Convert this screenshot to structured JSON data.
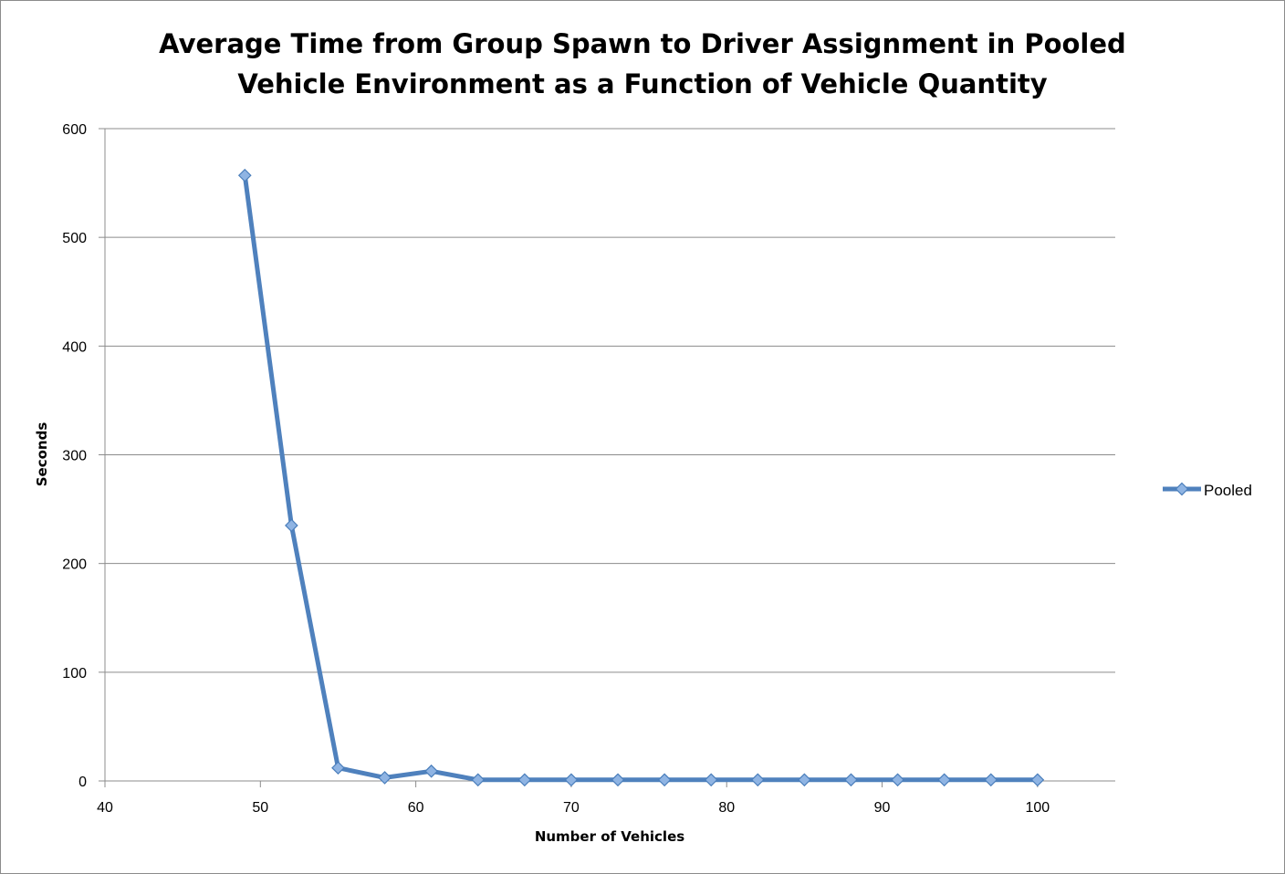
{
  "chart_data": {
    "type": "line",
    "title_lines": [
      "Average Time from Group Spawn to Driver Assignment in Pooled",
      "Vehicle Environment as a Function of Vehicle Quantity"
    ],
    "xlabel": "Number of Vehicles",
    "ylabel": "Seconds",
    "xlim": [
      40,
      105
    ],
    "ylim": [
      0,
      600
    ],
    "x_ticks": [
      40,
      50,
      60,
      70,
      80,
      90,
      100
    ],
    "y_ticks": [
      0,
      100,
      200,
      300,
      400,
      500,
      600
    ],
    "grid": "horizontal major gridlines",
    "legend_position": "right",
    "series": [
      {
        "name": "Pooled",
        "color": "#4f81bd",
        "marker": "diamond",
        "x": [
          49,
          52,
          55,
          58,
          61,
          64,
          67,
          70,
          73,
          76,
          79,
          82,
          85,
          88,
          91,
          94,
          97,
          100
        ],
        "y": [
          557,
          235,
          12,
          3,
          9,
          1,
          1,
          1,
          1,
          1,
          1,
          1,
          1,
          1,
          1,
          1,
          1,
          1
        ]
      }
    ]
  }
}
